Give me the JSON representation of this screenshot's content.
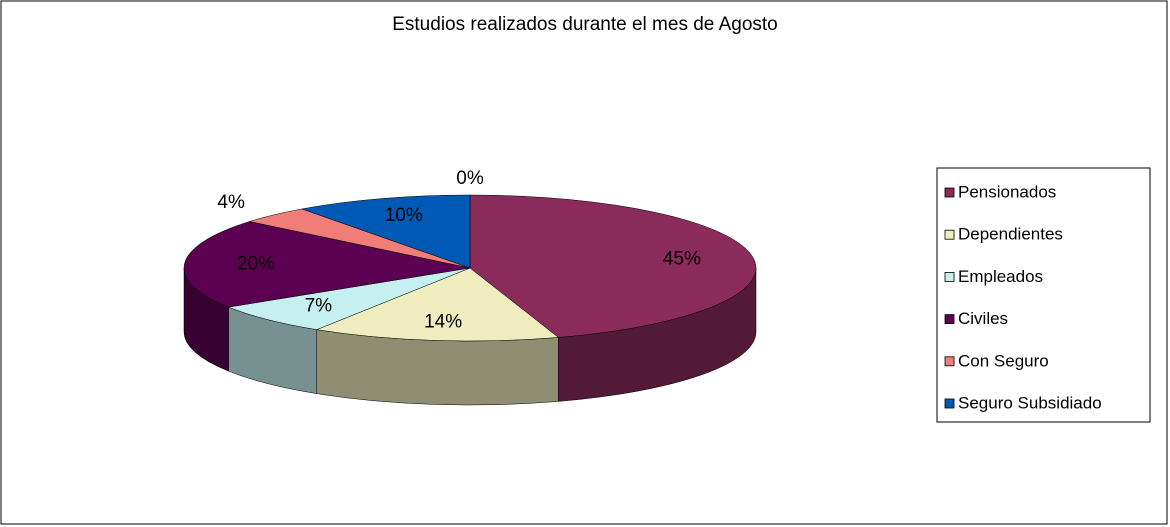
{
  "chart_data": {
    "type": "pie",
    "title": "Estudios realizados durante el mes de Agosto",
    "categories": [
      "Pensionados",
      "Dependientes",
      "Empleados",
      "Civiles",
      "Con Seguro",
      "Seguro Subsidiado",
      null
    ],
    "values": [
      45,
      14,
      7,
      20,
      4,
      10,
      0
    ],
    "value_labels": [
      "45%",
      "14%",
      "7%",
      "20%",
      "4%",
      "10%",
      "0%"
    ],
    "colors": [
      "#8b2b5b",
      "#efedc0",
      "#c6f0f0",
      "#5c0152",
      "#f07d78",
      "#0059b4",
      "#c0c0c0"
    ],
    "legend": "right"
  }
}
